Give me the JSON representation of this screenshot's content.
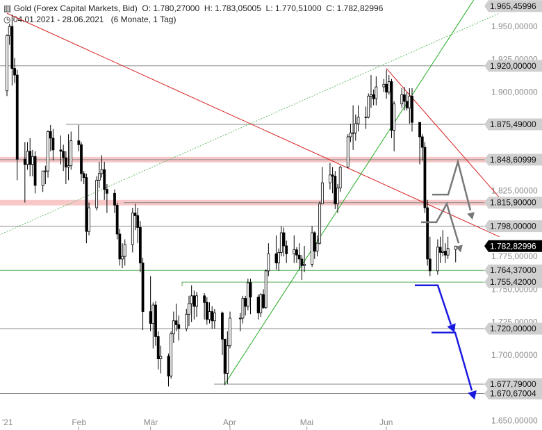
{
  "header": {
    "instrument": "Gold (Forex Capital Markets, Bid)",
    "ohlc": "O: 1.780,27000  H: 1.783,05005  L: 1.770,51000  C: 1.782,82996",
    "range": "04.01.2021 - 28.06.2021   (6 Monate, 1 Tag)"
  },
  "colors": {
    "up": "#ffffff",
    "down": "#000000",
    "trend_red": "#d62020",
    "trend_green": "#22aa22",
    "dotted_green": "#66bb66",
    "arrow_blue": "#1a1adf",
    "arrow_gray": "#777777",
    "tag_gray": "#cfcfcf",
    "tag_dark": "#000000"
  },
  "chart_data": {
    "type": "candlestick",
    "ylim": [
      1645,
      1968
    ],
    "y_ticks": [
      "1.650,00000",
      "1.675,00000",
      "1.700,00000",
      "1.725,00000",
      "1.750,00000",
      "1.775,00000",
      "1.800,00000",
      "1.825,00000",
      "1.850,00000",
      "1.875,00000",
      "1.900,00000",
      "1.925,00000",
      "1.950,00000"
    ],
    "y_tick_values": [
      1650,
      1675,
      1700,
      1725,
      1750,
      1775,
      1800,
      1825,
      1850,
      1875,
      1900,
      1925,
      1950
    ],
    "x_labels": [
      "'21",
      "Feb",
      "Mär",
      "Apr",
      "Mai",
      "Jun"
    ],
    "x_label_dates": [
      "2021-01-01",
      "2021-02-01",
      "2021-03-01",
      "2021-04-01",
      "2021-05-01",
      "2021-06-01"
    ],
    "levels": [
      {
        "label": "1.965,45996",
        "value": 1965.46,
        "line": false
      },
      {
        "label": "1.920,00000",
        "value": 1920.0,
        "line": true
      },
      {
        "label": "1.875,49000",
        "value": 1875.49,
        "line": true
      },
      {
        "label": "1.848,60999",
        "value": 1848.61,
        "line": true
      },
      {
        "label": "1.815,90000",
        "value": 1815.9,
        "line": true
      },
      {
        "label": "1.798,00000",
        "value": 1798.0,
        "line": true
      },
      {
        "label": "1.764,37000",
        "value": 1764.37,
        "line": true
      },
      {
        "label": "1.755,42000",
        "value": 1755.42,
        "line": true
      },
      {
        "label": "1.720,00000",
        "value": 1720.0,
        "line": true
      },
      {
        "label": "1.677,79000",
        "value": 1677.79,
        "line": true
      },
      {
        "label": "1.670,67004",
        "value": 1670.67,
        "line": true
      }
    ],
    "current": {
      "label": "1.782,82996",
      "value": 1782.83
    },
    "trendlines": [
      {
        "kind": "red",
        "from": [
          "2021-01-04",
          1960
        ],
        "to": [
          "2021-07-15",
          1790
        ]
      },
      {
        "kind": "red",
        "from": [
          "2021-06-01",
          1918
        ],
        "to": [
          "2021-07-15",
          1820
        ]
      },
      {
        "kind": "green",
        "from": [
          "2021-03-30",
          1678
        ],
        "to": [
          "2021-07-05",
          1970
        ]
      },
      {
        "kind": "dotted_green",
        "from": [
          "2020-12-27",
          1787
        ],
        "to": [
          "2021-07-15",
          1960
        ]
      }
    ],
    "candles": [
      {
        "d": "2021-01-04",
        "o": 1901,
        "h": 1944,
        "l": 1897,
        "c": 1943
      },
      {
        "d": "2021-01-05",
        "o": 1943,
        "h": 1952,
        "l": 1936,
        "c": 1950
      },
      {
        "d": "2021-01-06",
        "o": 1950,
        "h": 1959,
        "l": 1905,
        "c": 1918
      },
      {
        "d": "2021-01-07",
        "o": 1918,
        "h": 1926,
        "l": 1907,
        "c": 1913
      },
      {
        "d": "2021-01-08",
        "o": 1913,
        "h": 1917,
        "l": 1833,
        "c": 1849
      },
      {
        "d": "2021-01-11",
        "o": 1849,
        "h": 1862,
        "l": 1816,
        "c": 1845
      },
      {
        "d": "2021-01-12",
        "o": 1845,
        "h": 1862,
        "l": 1841,
        "c": 1855
      },
      {
        "d": "2021-01-13",
        "o": 1855,
        "h": 1865,
        "l": 1836,
        "c": 1845
      },
      {
        "d": "2021-01-14",
        "o": 1845,
        "h": 1856,
        "l": 1836,
        "c": 1851
      },
      {
        "d": "2021-01-15",
        "o": 1851,
        "h": 1855,
        "l": 1823,
        "c": 1829
      },
      {
        "d": "2021-01-18",
        "o": 1829,
        "h": 1839,
        "l": 1824,
        "c": 1840
      },
      {
        "d": "2021-01-19",
        "o": 1840,
        "h": 1844,
        "l": 1830,
        "c": 1840
      },
      {
        "d": "2021-01-20",
        "o": 1840,
        "h": 1871,
        "l": 1835,
        "c": 1870
      },
      {
        "d": "2021-01-21",
        "o": 1870,
        "h": 1875,
        "l": 1855,
        "c": 1865
      },
      {
        "d": "2021-01-22",
        "o": 1865,
        "h": 1872,
        "l": 1848,
        "c": 1856
      },
      {
        "d": "2021-01-25",
        "o": 1856,
        "h": 1867,
        "l": 1845,
        "c": 1855
      },
      {
        "d": "2021-01-26",
        "o": 1855,
        "h": 1860,
        "l": 1840,
        "c": 1850
      },
      {
        "d": "2021-01-27",
        "o": 1850,
        "h": 1855,
        "l": 1830,
        "c": 1843
      },
      {
        "d": "2021-01-28",
        "o": 1843,
        "h": 1868,
        "l": 1833,
        "c": 1844
      },
      {
        "d": "2021-01-29",
        "o": 1844,
        "h": 1870,
        "l": 1841,
        "c": 1863
      },
      {
        "d": "2021-02-01",
        "o": 1863,
        "h": 1875,
        "l": 1855,
        "c": 1860
      },
      {
        "d": "2021-02-02",
        "o": 1860,
        "h": 1862,
        "l": 1832,
        "c": 1838
      },
      {
        "d": "2021-02-03",
        "o": 1838,
        "h": 1840,
        "l": 1830,
        "c": 1835
      },
      {
        "d": "2021-02-04",
        "o": 1835,
        "h": 1838,
        "l": 1785,
        "c": 1794
      },
      {
        "d": "2021-02-05",
        "o": 1794,
        "h": 1816,
        "l": 1791,
        "c": 1812
      },
      {
        "d": "2021-02-08",
        "o": 1812,
        "h": 1836,
        "l": 1810,
        "c": 1833
      },
      {
        "d": "2021-02-09",
        "o": 1833,
        "h": 1847,
        "l": 1827,
        "c": 1838
      },
      {
        "d": "2021-02-10",
        "o": 1838,
        "h": 1852,
        "l": 1835,
        "c": 1841
      },
      {
        "d": "2021-02-11",
        "o": 1841,
        "h": 1847,
        "l": 1818,
        "c": 1826
      },
      {
        "d": "2021-02-12",
        "o": 1826,
        "h": 1830,
        "l": 1808,
        "c": 1823
      },
      {
        "d": "2021-02-15",
        "o": 1823,
        "h": 1826,
        "l": 1808,
        "c": 1814
      },
      {
        "d": "2021-02-16",
        "o": 1814,
        "h": 1816,
        "l": 1788,
        "c": 1792
      },
      {
        "d": "2021-02-17",
        "o": 1792,
        "h": 1796,
        "l": 1768,
        "c": 1773
      },
      {
        "d": "2021-02-18",
        "o": 1773,
        "h": 1785,
        "l": 1766,
        "c": 1775
      },
      {
        "d": "2021-02-19",
        "o": 1775,
        "h": 1788,
        "l": 1768,
        "c": 1784
      },
      {
        "d": "2021-02-22",
        "o": 1784,
        "h": 1812,
        "l": 1778,
        "c": 1808
      },
      {
        "d": "2021-02-23",
        "o": 1808,
        "h": 1815,
        "l": 1795,
        "c": 1806
      },
      {
        "d": "2021-02-24",
        "o": 1806,
        "h": 1812,
        "l": 1785,
        "c": 1797
      },
      {
        "d": "2021-02-25",
        "o": 1797,
        "h": 1802,
        "l": 1763,
        "c": 1770
      },
      {
        "d": "2021-02-26",
        "o": 1770,
        "h": 1774,
        "l": 1719,
        "c": 1733
      },
      {
        "d": "2021-03-01",
        "o": 1733,
        "h": 1760,
        "l": 1718,
        "c": 1724
      },
      {
        "d": "2021-03-02",
        "o": 1724,
        "h": 1740,
        "l": 1705,
        "c": 1738
      },
      {
        "d": "2021-03-03",
        "o": 1738,
        "h": 1741,
        "l": 1707,
        "c": 1714
      },
      {
        "d": "2021-03-04",
        "o": 1714,
        "h": 1718,
        "l": 1689,
        "c": 1697
      },
      {
        "d": "2021-03-05",
        "o": 1697,
        "h": 1707,
        "l": 1686,
        "c": 1699
      },
      {
        "d": "2021-03-08",
        "o": 1699,
        "h": 1701,
        "l": 1676,
        "c": 1684
      },
      {
        "d": "2021-03-09",
        "o": 1684,
        "h": 1718,
        "l": 1682,
        "c": 1716
      },
      {
        "d": "2021-03-10",
        "o": 1716,
        "h": 1733,
        "l": 1709,
        "c": 1726
      },
      {
        "d": "2021-03-11",
        "o": 1726,
        "h": 1739,
        "l": 1718,
        "c": 1723
      },
      {
        "d": "2021-03-12",
        "o": 1723,
        "h": 1730,
        "l": 1711,
        "c": 1720
      },
      {
        "d": "2021-03-15",
        "o": 1720,
        "h": 1735,
        "l": 1718,
        "c": 1731
      },
      {
        "d": "2021-03-16",
        "o": 1731,
        "h": 1745,
        "l": 1722,
        "c": 1739
      },
      {
        "d": "2021-03-17",
        "o": 1739,
        "h": 1753,
        "l": 1725,
        "c": 1745
      },
      {
        "d": "2021-03-18",
        "o": 1745,
        "h": 1749,
        "l": 1727,
        "c": 1737
      },
      {
        "d": "2021-03-19",
        "o": 1737,
        "h": 1748,
        "l": 1729,
        "c": 1745
      },
      {
        "d": "2021-03-22",
        "o": 1745,
        "h": 1747,
        "l": 1727,
        "c": 1740
      },
      {
        "d": "2021-03-23",
        "o": 1740,
        "h": 1744,
        "l": 1723,
        "c": 1727
      },
      {
        "d": "2021-03-24",
        "o": 1727,
        "h": 1740,
        "l": 1724,
        "c": 1733
      },
      {
        "d": "2021-03-25",
        "o": 1733,
        "h": 1737,
        "l": 1720,
        "c": 1726
      },
      {
        "d": "2021-03-26",
        "o": 1726,
        "h": 1735,
        "l": 1720,
        "c": 1732
      },
      {
        "d": "2021-03-29",
        "o": 1732,
        "h": 1733,
        "l": 1700,
        "c": 1712
      },
      {
        "d": "2021-03-30",
        "o": 1712,
        "h": 1712,
        "l": 1677,
        "c": 1686
      },
      {
        "d": "2021-03-31",
        "o": 1686,
        "h": 1718,
        "l": 1678,
        "c": 1707
      },
      {
        "d": "2021-04-01",
        "o": 1707,
        "h": 1733,
        "l": 1705,
        "c": 1728
      },
      {
        "d": "2021-04-05",
        "o": 1728,
        "h": 1732,
        "l": 1718,
        "c": 1728
      },
      {
        "d": "2021-04-06",
        "o": 1728,
        "h": 1745,
        "l": 1724,
        "c": 1743
      },
      {
        "d": "2021-04-07",
        "o": 1743,
        "h": 1745,
        "l": 1730,
        "c": 1737
      },
      {
        "d": "2021-04-08",
        "o": 1737,
        "h": 1758,
        "l": 1734,
        "c": 1755
      },
      {
        "d": "2021-04-09",
        "o": 1755,
        "h": 1758,
        "l": 1731,
        "c": 1744
      },
      {
        "d": "2021-04-12",
        "o": 1744,
        "h": 1746,
        "l": 1727,
        "c": 1732
      },
      {
        "d": "2021-04-13",
        "o": 1732,
        "h": 1747,
        "l": 1729,
        "c": 1746
      },
      {
        "d": "2021-04-14",
        "o": 1746,
        "h": 1750,
        "l": 1735,
        "c": 1736
      },
      {
        "d": "2021-04-15",
        "o": 1736,
        "h": 1765,
        "l": 1735,
        "c": 1764
      },
      {
        "d": "2021-04-16",
        "o": 1764,
        "h": 1785,
        "l": 1760,
        "c": 1777
      },
      {
        "d": "2021-04-19",
        "o": 1777,
        "h": 1791,
        "l": 1765,
        "c": 1770
      },
      {
        "d": "2021-04-20",
        "o": 1770,
        "h": 1781,
        "l": 1764,
        "c": 1778
      },
      {
        "d": "2021-04-21",
        "o": 1778,
        "h": 1798,
        "l": 1775,
        "c": 1793
      },
      {
        "d": "2021-04-22",
        "o": 1793,
        "h": 1797,
        "l": 1775,
        "c": 1783
      },
      {
        "d": "2021-04-23",
        "o": 1783,
        "h": 1787,
        "l": 1770,
        "c": 1777
      },
      {
        "d": "2021-04-26",
        "o": 1777,
        "h": 1791,
        "l": 1770,
        "c": 1780
      },
      {
        "d": "2021-04-27",
        "o": 1780,
        "h": 1782,
        "l": 1770,
        "c": 1776
      },
      {
        "d": "2021-04-28",
        "o": 1776,
        "h": 1785,
        "l": 1765,
        "c": 1773
      },
      {
        "d": "2021-04-29",
        "o": 1773,
        "h": 1776,
        "l": 1757,
        "c": 1768
      },
      {
        "d": "2021-04-30",
        "o": 1768,
        "h": 1783,
        "l": 1763,
        "c": 1769
      },
      {
        "d": "2021-05-03",
        "o": 1769,
        "h": 1798,
        "l": 1767,
        "c": 1793
      },
      {
        "d": "2021-05-04",
        "o": 1793,
        "h": 1794,
        "l": 1773,
        "c": 1779
      },
      {
        "d": "2021-05-05",
        "o": 1779,
        "h": 1791,
        "l": 1775,
        "c": 1785
      },
      {
        "d": "2021-05-06",
        "o": 1785,
        "h": 1817,
        "l": 1784,
        "c": 1815
      },
      {
        "d": "2021-05-07",
        "o": 1815,
        "h": 1843,
        "l": 1815,
        "c": 1831
      },
      {
        "d": "2021-05-10",
        "o": 1831,
        "h": 1846,
        "l": 1826,
        "c": 1837
      },
      {
        "d": "2021-05-11",
        "o": 1837,
        "h": 1843,
        "l": 1823,
        "c": 1836
      },
      {
        "d": "2021-05-12",
        "o": 1836,
        "h": 1840,
        "l": 1811,
        "c": 1815
      },
      {
        "d": "2021-05-13",
        "o": 1815,
        "h": 1830,
        "l": 1808,
        "c": 1827
      },
      {
        "d": "2021-05-14",
        "o": 1827,
        "h": 1844,
        "l": 1824,
        "c": 1843
      },
      {
        "d": "2021-05-17",
        "o": 1843,
        "h": 1868,
        "l": 1842,
        "c": 1866
      },
      {
        "d": "2021-05-18",
        "o": 1866,
        "h": 1876,
        "l": 1862,
        "c": 1869
      },
      {
        "d": "2021-05-19",
        "o": 1869,
        "h": 1890,
        "l": 1856,
        "c": 1869
      },
      {
        "d": "2021-05-20",
        "o": 1869,
        "h": 1883,
        "l": 1863,
        "c": 1876
      },
      {
        "d": "2021-05-21",
        "o": 1876,
        "h": 1890,
        "l": 1870,
        "c": 1881
      },
      {
        "d": "2021-05-24",
        "o": 1881,
        "h": 1889,
        "l": 1872,
        "c": 1881
      },
      {
        "d": "2021-05-25",
        "o": 1881,
        "h": 1899,
        "l": 1880,
        "c": 1897
      },
      {
        "d": "2021-05-26",
        "o": 1897,
        "h": 1913,
        "l": 1888,
        "c": 1898
      },
      {
        "d": "2021-05-27",
        "o": 1898,
        "h": 1902,
        "l": 1890,
        "c": 1895
      },
      {
        "d": "2021-05-28",
        "o": 1895,
        "h": 1912,
        "l": 1890,
        "c": 1904
      },
      {
        "d": "2021-05-31",
        "o": 1904,
        "h": 1910,
        "l": 1900,
        "c": 1906
      },
      {
        "d": "2021-06-01",
        "o": 1906,
        "h": 1917,
        "l": 1895,
        "c": 1900
      },
      {
        "d": "2021-06-02",
        "o": 1900,
        "h": 1913,
        "l": 1898,
        "c": 1908
      },
      {
        "d": "2021-06-03",
        "o": 1908,
        "h": 1910,
        "l": 1865,
        "c": 1871
      },
      {
        "d": "2021-06-04",
        "o": 1871,
        "h": 1893,
        "l": 1855,
        "c": 1891
      },
      {
        "d": "2021-06-07",
        "o": 1891,
        "h": 1903,
        "l": 1888,
        "c": 1898
      },
      {
        "d": "2021-06-08",
        "o": 1898,
        "h": 1904,
        "l": 1886,
        "c": 1893
      },
      {
        "d": "2021-06-09",
        "o": 1893,
        "h": 1900,
        "l": 1886,
        "c": 1888
      },
      {
        "d": "2021-06-10",
        "o": 1888,
        "h": 1903,
        "l": 1876,
        "c": 1897
      },
      {
        "d": "2021-06-11",
        "o": 1897,
        "h": 1903,
        "l": 1870,
        "c": 1877
      },
      {
        "d": "2021-06-14",
        "o": 1877,
        "h": 1877,
        "l": 1845,
        "c": 1866
      },
      {
        "d": "2021-06-15",
        "o": 1866,
        "h": 1868,
        "l": 1848,
        "c": 1858
      },
      {
        "d": "2021-06-16",
        "o": 1858,
        "h": 1862,
        "l": 1808,
        "c": 1812
      },
      {
        "d": "2021-06-17",
        "o": 1812,
        "h": 1818,
        "l": 1768,
        "c": 1773
      },
      {
        "d": "2021-06-18",
        "o": 1773,
        "h": 1790,
        "l": 1760,
        "c": 1764
      },
      {
        "d": "2021-06-21",
        "o": 1764,
        "h": 1788,
        "l": 1761,
        "c": 1782
      },
      {
        "d": "2021-06-22",
        "o": 1782,
        "h": 1790,
        "l": 1770,
        "c": 1778
      },
      {
        "d": "2021-06-23",
        "o": 1778,
        "h": 1795,
        "l": 1775,
        "c": 1779
      },
      {
        "d": "2021-06-24",
        "o": 1779,
        "h": 1785,
        "l": 1770,
        "c": 1776
      },
      {
        "d": "2021-06-25",
        "o": 1776,
        "h": 1790,
        "l": 1773,
        "c": 1781
      },
      {
        "d": "2021-06-28",
        "o": 1780.27,
        "h": 1783.05,
        "l": 1770.51,
        "c": 1782.83
      }
    ]
  }
}
